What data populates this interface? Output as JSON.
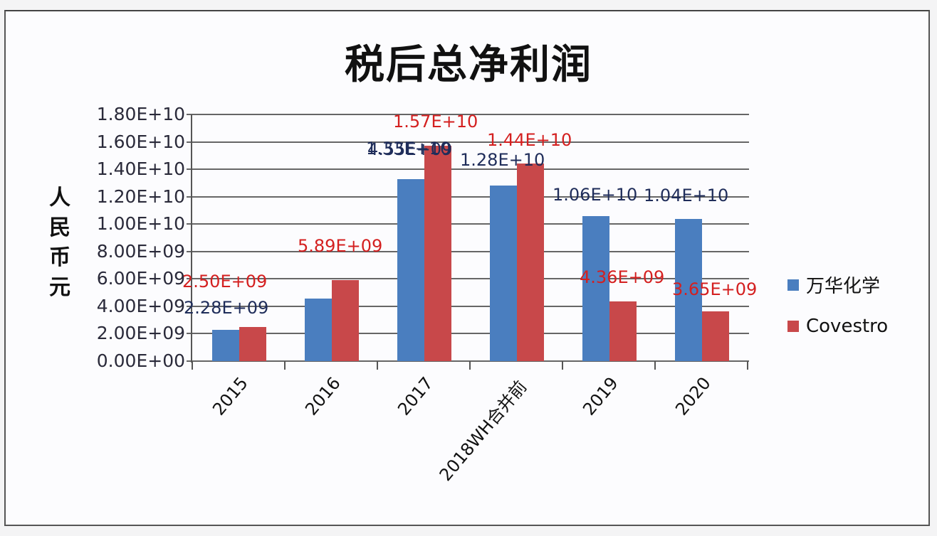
{
  "chart_data": {
    "type": "bar",
    "title": "税后总净利润",
    "xlabel": "",
    "ylabel": "人民币元",
    "ylim": [
      0,
      18000000000
    ],
    "yticks": [
      "0.00E+00",
      "2.00E+09",
      "4.00E+09",
      "6.00E+09",
      "8.00E+09",
      "1.00E+10",
      "1.20E+10",
      "1.40E+10",
      "1.60E+10",
      "1.80E+10"
    ],
    "grid": true,
    "legend_position": "right",
    "categories": [
      "2015",
      "2016",
      "2017",
      "2018WH合并前",
      "2019",
      "2020"
    ],
    "series": [
      {
        "name": "万华化学",
        "color": "#4a7ebf",
        "label_color": "#1f2d5a",
        "values": [
          2280000000,
          4550000000,
          13300000000,
          12800000000,
          10600000000,
          10400000000
        ],
        "labels": [
          "2.28E+09",
          "4.55E+09",
          "1.33E+10",
          "1.28E+10",
          "1.06E+10",
          "1.04E+10"
        ]
      },
      {
        "name": "Covestro",
        "color": "#c8484a",
        "label_color": "#d42020",
        "values": [
          2500000000,
          5890000000,
          15700000000,
          14400000000,
          4360000000,
          3650000000
        ],
        "labels": [
          "2.50E+09",
          "5.89E+09",
          "1.57E+10",
          "1.44E+10",
          "4.36E+09",
          "3.65E+09"
        ]
      }
    ]
  }
}
